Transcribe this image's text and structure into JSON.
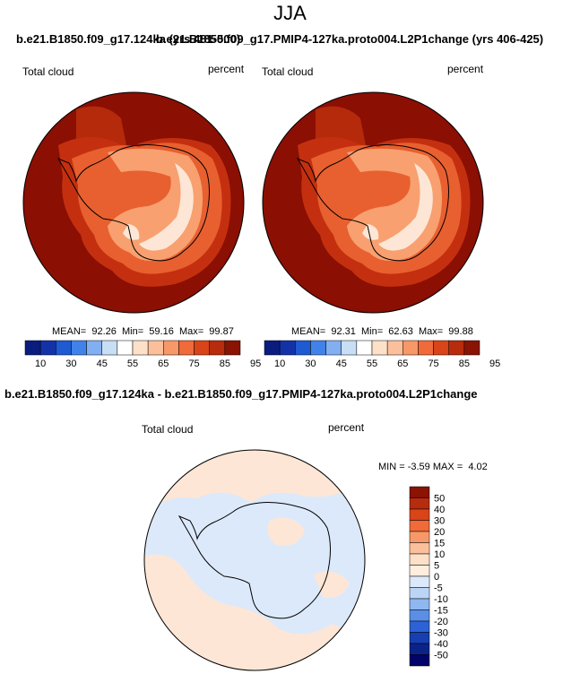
{
  "figure": {
    "season": "JJA",
    "run_a": "b.e21.B1850.f09_g17.124ka (yrs 481-500)",
    "run_b": "b.e21.B1850.f09_g17.PMIP4-127ka.proto004.L2P1change (yrs 406-425)",
    "diff_title": "b.e21.B1850.f09_g17.124ka - b.e21.B1850.f09_g17.PMIP4-127ka.proto004.L2P1change"
  },
  "panels": [
    {
      "variable": "Total cloud",
      "units": "percent",
      "stats": {
        "mean_label": "MEAN=",
        "mean": "92.26",
        "min_label": "Min=",
        "min": "59.16",
        "max_label": "Max=",
        "max": "99.87"
      }
    },
    {
      "variable": "Total cloud",
      "units": "percent",
      "stats": {
        "mean_label": "MEAN=",
        "mean": "92.31",
        "min_label": "Min=",
        "min": "62.63",
        "max_label": "Max=",
        "max": "99.88"
      }
    }
  ],
  "abs_colorbar": {
    "colors": [
      "#0b1c7f",
      "#1432a8",
      "#1e5ad2",
      "#4182ea",
      "#82aff1",
      "#c8def5",
      "#ffffff",
      "#fde0c8",
      "#fbc09b",
      "#f89868",
      "#f06a3a",
      "#d94418",
      "#b72c0c",
      "#8a1304"
    ],
    "tick_labels": [
      "10",
      "30",
      "45",
      "55",
      "65",
      "75",
      "85",
      "95"
    ]
  },
  "diff_panel": {
    "variable": "Total cloud",
    "units": "percent",
    "stats": {
      "min_label": "MIN =",
      "min": "-3.59",
      "max_label": "MAX =",
      "max": "4.02"
    }
  },
  "diff_colorbar": {
    "colors": [
      "#8a1304",
      "#b72c0c",
      "#d94418",
      "#f06a3a",
      "#f89868",
      "#fbc09b",
      "#fde0c8",
      "#ffeedd",
      "#dbe9fb",
      "#bcd5f7",
      "#8fb7f0",
      "#5a8fe6",
      "#2d62d6",
      "#173fb1",
      "#0b2389",
      "#03036a"
    ],
    "tick_labels": [
      "50",
      "40",
      "30",
      "20",
      "15",
      "10",
      "5",
      "0",
      "-5",
      "-10",
      "-15",
      "-20",
      "-30",
      "-40",
      "-50"
    ]
  },
  "palette": {
    "ocean_dark_red": "#8b0f03",
    "mid_red": "#c4300f",
    "orange": "#e86030",
    "light_orange": "#f8a070",
    "pale": "#fde6d6",
    "diff_pos": "#fde6d6",
    "diff_neg": "#dce9fb",
    "coast": "#000000"
  }
}
